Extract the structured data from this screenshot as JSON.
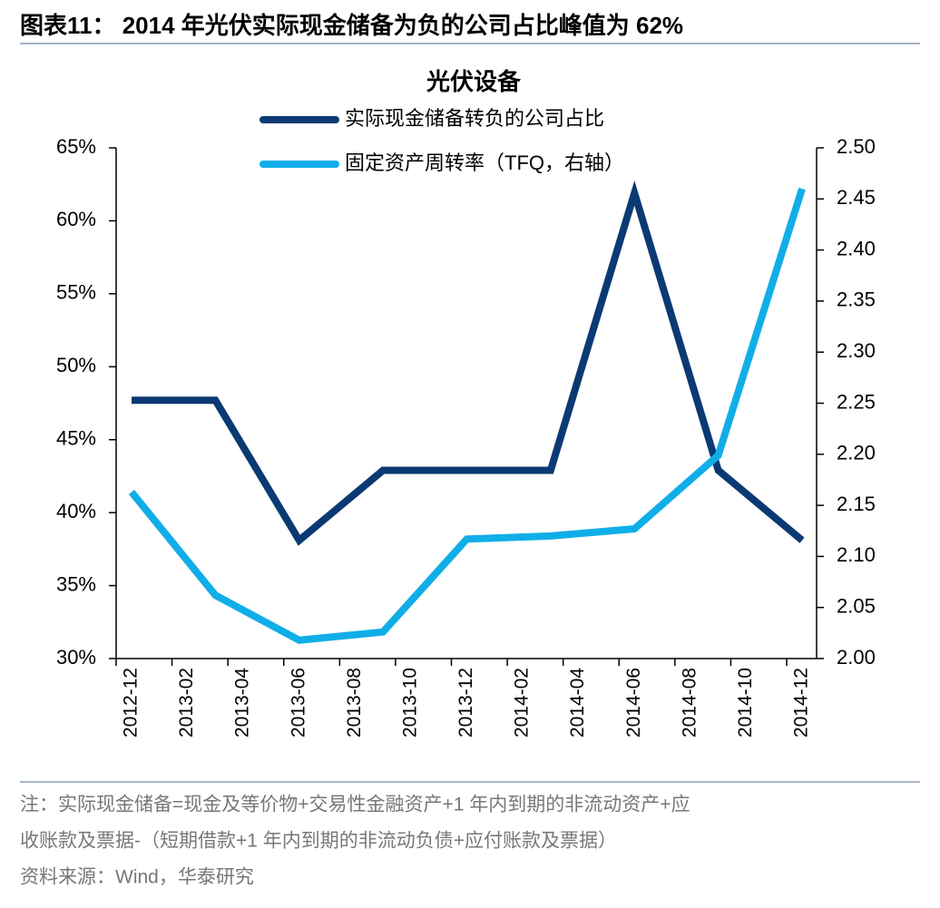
{
  "header": {
    "title": "图表11： 2014 年光伏实际现金储备为负的公司占比峰值为 62%"
  },
  "chart_data": {
    "type": "line",
    "title": "光伏设备",
    "x": [
      "2012-12",
      "2013-03",
      "2013-06",
      "2013-09",
      "2013-12",
      "2014-03",
      "2014-06",
      "2014-09",
      "2014-12"
    ],
    "xticks": [
      "2012-12",
      "2013-02",
      "2013-04",
      "2013-06",
      "2013-08",
      "2013-10",
      "2013-12",
      "2014-02",
      "2014-04",
      "2014-06",
      "2014-08",
      "2014-10",
      "2014-12"
    ],
    "series": [
      {
        "name": "实际现金储备转负的公司占比",
        "color": "#0b3a73",
        "values": [
          47.7,
          47.7,
          38.1,
          42.9,
          42.9,
          42.9,
          61.9,
          42.9,
          38.1
        ]
      },
      {
        "name": "固定资产周转率（TFQ，右轴）",
        "color": "#10aee8",
        "axis": "y2",
        "values": [
          2.163,
          2.062,
          2.018,
          2.026,
          2.117,
          2.12,
          2.127,
          2.199,
          2.46
        ]
      }
    ],
    "ylim": [
      30,
      65
    ],
    "yticks": [
      {
        "value": 30,
        "label": "30%"
      },
      {
        "value": 35,
        "label": "35%"
      },
      {
        "value": 40,
        "label": "40%"
      },
      {
        "value": 45,
        "label": "45%"
      },
      {
        "value": 50,
        "label": "50%"
      },
      {
        "value": 55,
        "label": "55%"
      },
      {
        "value": 60,
        "label": "60%"
      },
      {
        "value": 65,
        "label": "65%"
      }
    ],
    "y2lim": [
      2,
      2.5
    ],
    "y2ticks": [
      {
        "value": 2,
        "label": "2.00"
      },
      2.05,
      {
        "value": 2.1,
        "label": "2.10"
      },
      2.15,
      {
        "value": 2.2,
        "label": "2.20"
      },
      2.25,
      {
        "value": 2.3,
        "label": "2.30"
      },
      2.35,
      {
        "value": 2.4,
        "label": "2.40"
      },
      2.45,
      {
        "value": 2.5,
        "label": "2.50"
      }
    ],
    "legend": "top"
  },
  "notes": [
    "注：实际现金储备=现金及等价物+交易性金融资产+1 年内到期的非流动资产+应",
    "收账款及票据-（短期借款+1 年内到期的非流动负债+应付账款及票据）"
  ],
  "source": "资料来源：Wind，华泰研究"
}
